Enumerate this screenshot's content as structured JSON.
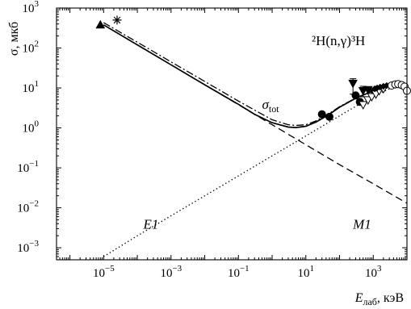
{
  "chart_data": {
    "type": "line",
    "x_scale": "log",
    "y_scale": "log",
    "xlim": [
      4e-07,
      10000.0
    ],
    "ylim": [
      0.0005,
      1000
    ],
    "xlabel": "E",
    "xlabel_sub": "лаб",
    "xlabel_unit": ", кэВ",
    "ylabel": "σ, мкб",
    "reaction_label": "²H(n,γ)³H",
    "x_ticks": [
      {
        "value": 1e-05,
        "base": "10",
        "exp": "−5"
      },
      {
        "value": 0.001,
        "base": "10",
        "exp": "−3"
      },
      {
        "value": 0.1,
        "base": "10",
        "exp": "−1"
      },
      {
        "value": 10.0,
        "base": "10",
        "exp": "1"
      },
      {
        "value": 1000.0,
        "base": "10",
        "exp": "3"
      }
    ],
    "y_ticks": [
      {
        "value": 1000.0,
        "base": "10",
        "exp": "3"
      },
      {
        "value": 100.0,
        "base": "10",
        "exp": "2"
      },
      {
        "value": 10.0,
        "base": "10",
        "exp": "1"
      },
      {
        "value": 1.0,
        "base": "10",
        "exp": "0"
      },
      {
        "value": 0.1,
        "base": "10",
        "exp": "−1"
      },
      {
        "value": 0.01,
        "base": "10",
        "exp": "−2"
      },
      {
        "value": 0.001,
        "base": "10",
        "exp": "−3"
      }
    ],
    "annotations": [
      {
        "key": "sigma-tot",
        "main": "σ",
        "sub": "tot",
        "x": 0.5,
        "y": 3.0
      },
      {
        "key": "e1",
        "main": "E1",
        "sub": "",
        "x": 0.00015,
        "y": 0.003
      },
      {
        "key": "m1",
        "main": "M1",
        "sub": "",
        "x": 250,
        "y": 0.003
      }
    ],
    "series": [
      {
        "key": "total",
        "style": "solid",
        "points": [
          [
            1e-05,
            380
          ],
          [
            0.0001,
            120
          ],
          [
            0.001,
            38
          ],
          [
            0.01,
            12
          ],
          [
            0.1,
            3.9
          ],
          [
            0.3,
            2.2
          ],
          [
            1,
            1.35
          ],
          [
            3,
            1.05
          ],
          [
            5,
            1.02
          ],
          [
            10,
            1.1
          ],
          [
            20,
            1.4
          ],
          [
            50,
            2.2
          ],
          [
            100,
            3.3
          ],
          [
            300,
            5.5
          ],
          [
            1000,
            8.5
          ],
          [
            3000,
            11.5
          ],
          [
            10000,
            12
          ]
        ]
      },
      {
        "key": "m1-dashed",
        "style": "dashed",
        "points": [
          [
            1e-05,
            380
          ],
          [
            0.0001,
            120
          ],
          [
            0.001,
            38
          ],
          [
            0.01,
            12
          ],
          [
            0.1,
            3.8
          ],
          [
            1,
            1.2
          ],
          [
            10,
            0.38
          ],
          [
            100,
            0.12
          ],
          [
            1000,
            0.04
          ],
          [
            10000,
            0.013
          ]
        ]
      },
      {
        "key": "e1-dotted",
        "style": "dotted",
        "points": [
          [
            1e-05,
            0.0006
          ],
          [
            0.0001,
            0.002
          ],
          [
            0.001,
            0.0063
          ],
          [
            0.01,
            0.02
          ],
          [
            0.1,
            0.063
          ],
          [
            1,
            0.2
          ],
          [
            10,
            0.63
          ],
          [
            100,
            2.0
          ],
          [
            1000,
            6.3
          ],
          [
            3000,
            9.5
          ],
          [
            10000,
            11.5
          ]
        ]
      },
      {
        "key": "dashdot",
        "style": "dashdot",
        "points": [
          [
            1e-05,
            430
          ],
          [
            0.0001,
            140
          ],
          [
            0.001,
            45
          ],
          [
            0.01,
            14.5
          ],
          [
            0.1,
            4.7
          ],
          [
            0.3,
            2.8
          ],
          [
            1,
            1.6
          ],
          [
            3,
            1.2
          ],
          [
            5,
            1.15
          ],
          [
            10,
            1.2
          ],
          [
            20,
            1.5
          ],
          [
            50,
            2.3
          ],
          [
            100,
            3.4
          ],
          [
            300,
            5.6
          ],
          [
            1000,
            8.6
          ],
          [
            3000,
            11.5
          ],
          [
            10000,
            12
          ]
        ]
      }
    ],
    "markers": [
      {
        "key": "filled-triangle-up",
        "shape": "tri-up",
        "fill": true,
        "points": [
          [
            8e-06,
            380
          ]
        ]
      },
      {
        "key": "asterisk",
        "shape": "star",
        "fill": false,
        "points": [
          [
            2.5e-05,
            500
          ]
        ]
      },
      {
        "key": "filled-circles",
        "shape": "circle",
        "fill": true,
        "points": [
          [
            30,
            2.2
          ],
          [
            50,
            1.9
          ],
          [
            300,
            6.5
          ],
          [
            400,
            4.5
          ]
        ]
      },
      {
        "key": "filled-triangles-down",
        "shape": "tri-down",
        "fill": true,
        "points": [
          [
            250,
            13
          ],
          [
            500,
            8.5
          ],
          [
            700,
            9
          ],
          [
            1000,
            8
          ],
          [
            1500,
            9
          ]
        ],
        "yerr": [
          [
            250,
            7,
            17
          ],
          [
            500,
            6,
            11
          ]
        ]
      },
      {
        "key": "open-triangles-down",
        "shape": "tri-down",
        "fill": false,
        "points": [
          [
            500,
            3.8
          ],
          [
            700,
            5
          ],
          [
            900,
            6
          ],
          [
            1200,
            7
          ],
          [
            1500,
            8.5
          ],
          [
            2000,
            9.5
          ]
        ]
      },
      {
        "key": "small-filled-markers",
        "shape": "diamond",
        "fill": true,
        "points": [
          [
            1100,
            9.5
          ],
          [
            1300,
            10
          ],
          [
            1600,
            10.5
          ],
          [
            2000,
            11
          ],
          [
            2500,
            11.5
          ]
        ]
      },
      {
        "key": "open-circles",
        "shape": "circle",
        "fill": false,
        "points": [
          [
            3500,
            11.5
          ],
          [
            4500,
            12.3
          ],
          [
            5500,
            12.5
          ],
          [
            7000,
            11.8
          ],
          [
            8500,
            10.8
          ],
          [
            10000,
            8.5
          ]
        ]
      }
    ]
  }
}
